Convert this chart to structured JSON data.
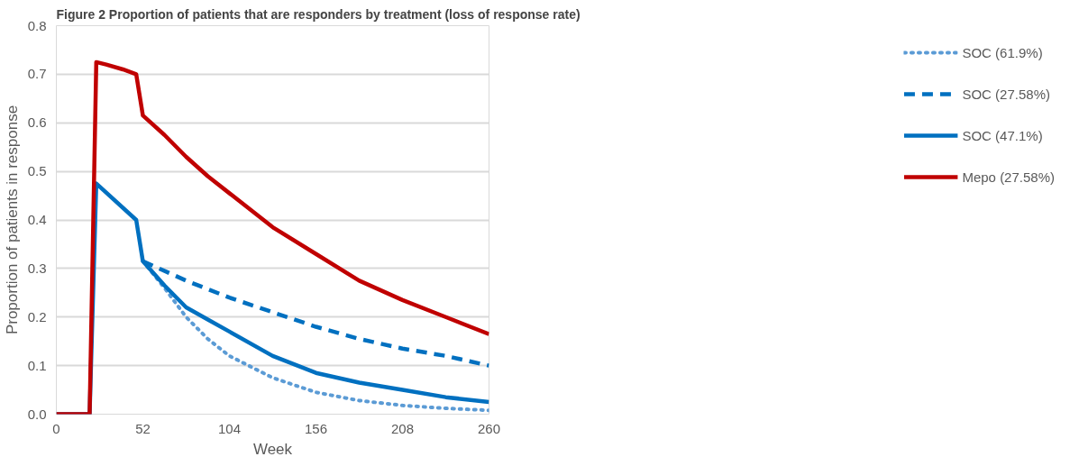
{
  "chart_data": {
    "type": "line",
    "title": "Figure 2 Proportion of patients that are responders by treatment (loss of response rate)",
    "xlabel": "Week",
    "ylabel": "Proportion of patients in response",
    "xlim": [
      0,
      260
    ],
    "xticks": [
      0,
      52,
      104,
      156,
      208,
      260
    ],
    "ylim": [
      0,
      0.8
    ],
    "yticks": [
      {
        "value": 0,
        "label": "0.0"
      },
      0.1,
      0.2,
      0.3,
      0.4,
      0.5,
      0.6,
      0.7,
      0.8
    ],
    "grid": "y",
    "legend": "right",
    "marker": "none",
    "series": [
      {
        "name": "SOC (61.9%)",
        "color": "#5b9bd5",
        "line_style": "dotted",
        "x": [
          52,
          65,
          78,
          91,
          104,
          130,
          156,
          182,
          208,
          234,
          260
        ],
        "values": [
          0.315,
          0.26,
          0.2,
          0.155,
          0.12,
          0.075,
          0.045,
          0.028,
          0.018,
          0.012,
          0.008
        ]
      },
      {
        "name": "SOC (27.58%)",
        "color": "#0070c0",
        "line_style": "dashed",
        "x": [
          52,
          78,
          104,
          130,
          156,
          182,
          208,
          234,
          260
        ],
        "values": [
          0.315,
          0.275,
          0.24,
          0.21,
          0.18,
          0.155,
          0.135,
          0.12,
          0.1
        ]
      },
      {
        "name": "SOC (47.1%)",
        "color": "#0070c0",
        "line_style": "solid",
        "x": [
          0,
          20,
          24,
          48,
          52,
          65,
          78,
          91,
          104,
          130,
          156,
          182,
          208,
          234,
          260
        ],
        "values": [
          0,
          0,
          0.475,
          0.4,
          0.315,
          0.265,
          0.22,
          0.195,
          0.17,
          0.12,
          0.085,
          0.065,
          0.05,
          0.035,
          0.025
        ]
      },
      {
        "name": "Mepo (27.58%)",
        "color": "#c00000",
        "line_style": "solid",
        "x": [
          0,
          20,
          24,
          30,
          40,
          48,
          52,
          65,
          78,
          91,
          104,
          130,
          156,
          182,
          208,
          234,
          260
        ],
        "values": [
          0,
          0,
          0.725,
          0.72,
          0.71,
          0.7,
          0.615,
          0.575,
          0.53,
          0.49,
          0.455,
          0.385,
          0.33,
          0.275,
          0.235,
          0.2,
          0.165
        ]
      }
    ]
  }
}
